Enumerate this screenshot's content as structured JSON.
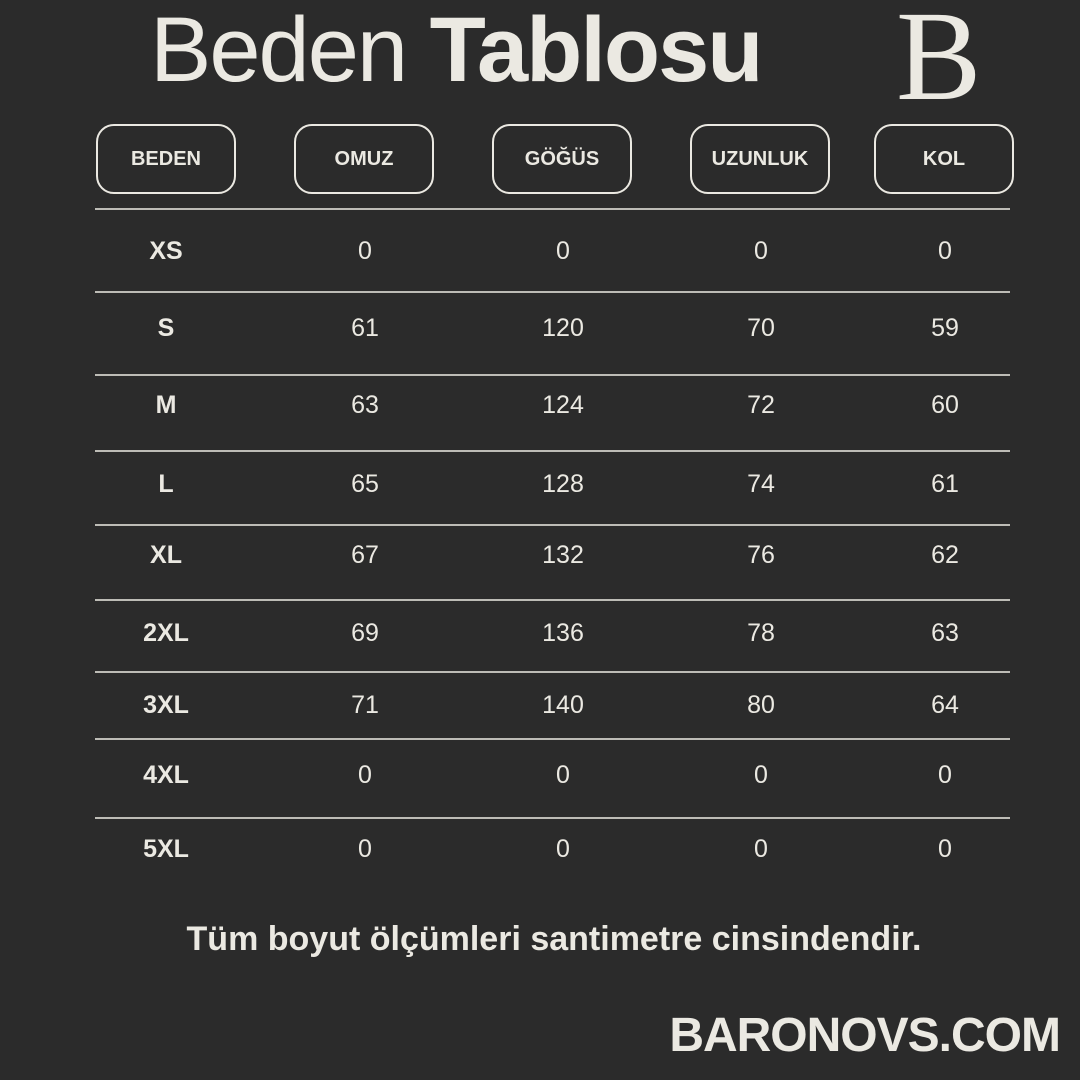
{
  "title": {
    "light": "Beden",
    "bold": "Tablosu"
  },
  "logo_letter": "B",
  "columns": [
    "BEDEN",
    "OMUZ",
    "GÖĞÜS",
    "UZUNLUK",
    "KOL"
  ],
  "rows": [
    [
      "XS",
      "0",
      "0",
      "0",
      "0"
    ],
    [
      "S",
      "61",
      "120",
      "70",
      "59"
    ],
    [
      "M",
      "63",
      "124",
      "72",
      "60"
    ],
    [
      "L",
      "65",
      "128",
      "74",
      "61"
    ],
    [
      "XL",
      "67",
      "132",
      "76",
      "62"
    ],
    [
      "2XL",
      "69",
      "136",
      "78",
      "63"
    ],
    [
      "3XL",
      "71",
      "140",
      "80",
      "64"
    ],
    [
      "4XL",
      "0",
      "0",
      "0",
      "0"
    ],
    [
      "5XL",
      "0",
      "0",
      "0",
      "0"
    ]
  ],
  "note": "Tüm boyut ölçümleri santimetre cinsindendir.",
  "brand": "BARONOVS.COM",
  "colors": {
    "background": "#2b2b2b",
    "text": "#ebe9e2"
  }
}
